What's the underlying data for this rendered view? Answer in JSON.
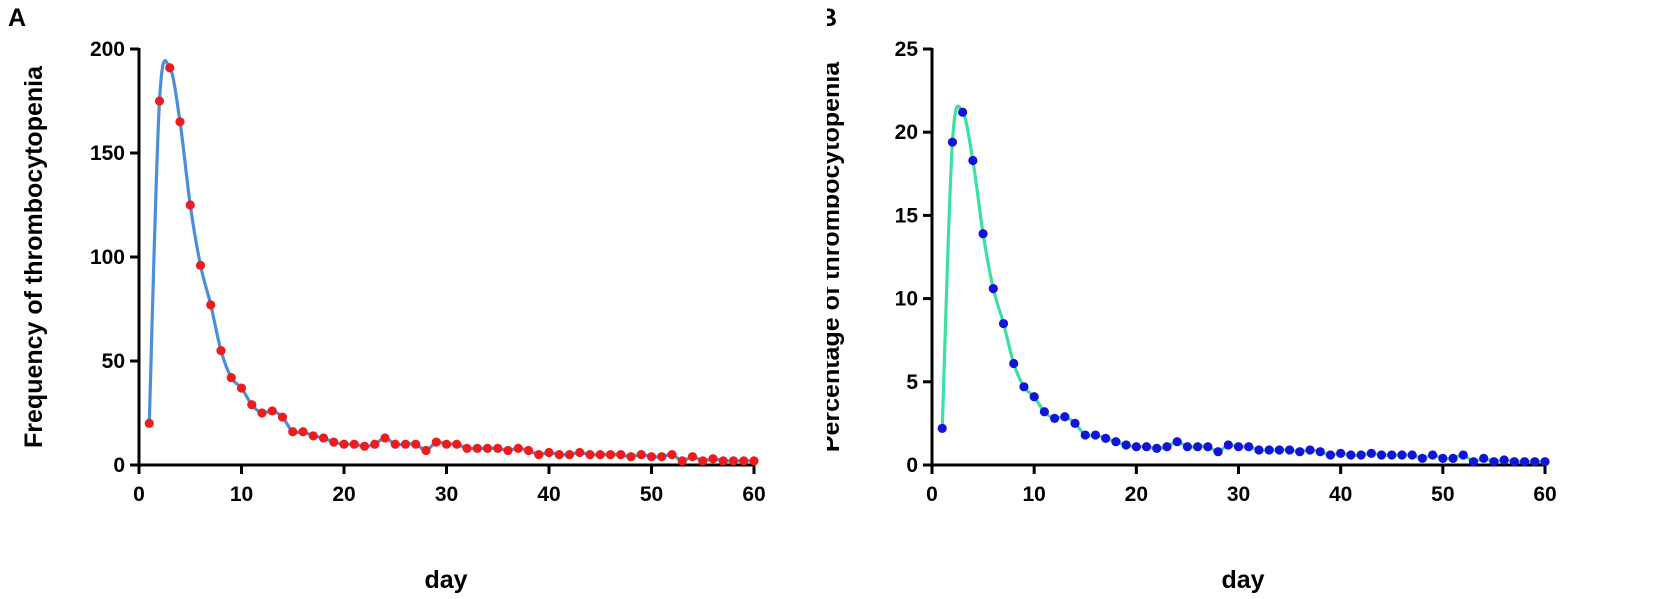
{
  "chart_data": [
    {
      "type": "line",
      "panel_label": "A",
      "xlabel": "day",
      "ylabel": "Frequency of thrombocytopenia",
      "xlim": [
        0,
        60
      ],
      "ylim": [
        0,
        200
      ],
      "xticks": [
        0,
        10,
        20,
        30,
        40,
        50,
        60
      ],
      "yticks": [
        0,
        50,
        100,
        150,
        200
      ],
      "grid": false,
      "line_color": "#4a90d9",
      "marker_color": "#ee1c1c",
      "series": [
        {
          "x": [
            1,
            2,
            3,
            4,
            5,
            6,
            7,
            8,
            9,
            10,
            11,
            12,
            13,
            14,
            15,
            16,
            17,
            18,
            19,
            20,
            21,
            22,
            23,
            24,
            25,
            26,
            27,
            28,
            29,
            30,
            31,
            32,
            33,
            34,
            35,
            36,
            37,
            38,
            39,
            40,
            41,
            42,
            43,
            44,
            45,
            46,
            47,
            48,
            49,
            50,
            51,
            52,
            53,
            54,
            55,
            56,
            57,
            58,
            59,
            60
          ],
          "values": [
            20,
            175,
            191,
            165,
            125,
            96,
            77,
            55,
            42,
            37,
            29,
            25,
            26,
            23,
            16,
            16,
            14,
            13,
            11,
            10,
            10,
            9,
            10,
            13,
            10,
            10,
            10,
            7,
            11,
            10,
            10,
            8,
            8,
            8,
            8,
            7,
            8,
            7,
            5,
            6,
            5,
            5,
            6,
            5,
            5,
            5,
            5,
            4,
            5,
            4,
            4,
            5,
            2,
            4,
            2,
            3,
            2,
            2,
            2,
            2
          ]
        }
      ]
    },
    {
      "type": "line",
      "panel_label": "B",
      "xlabel": "day",
      "ylabel": "Percentage of thrombocytopenia",
      "xlim": [
        0,
        60
      ],
      "ylim": [
        0,
        25
      ],
      "xticks": [
        0,
        10,
        20,
        30,
        40,
        50,
        60
      ],
      "yticks": [
        0,
        5,
        10,
        15,
        20,
        25
      ],
      "grid": false,
      "line_color": "#3ee0a0",
      "marker_color": "#1414d8",
      "series": [
        {
          "x": [
            1,
            2,
            3,
            4,
            5,
            6,
            7,
            8,
            9,
            10,
            11,
            12,
            13,
            14,
            15,
            16,
            17,
            18,
            19,
            20,
            21,
            22,
            23,
            24,
            25,
            26,
            27,
            28,
            29,
            30,
            31,
            32,
            33,
            34,
            35,
            36,
            37,
            38,
            39,
            40,
            41,
            42,
            43,
            44,
            45,
            46,
            47,
            48,
            49,
            50,
            51,
            52,
            53,
            54,
            55,
            56,
            57,
            58,
            59,
            60
          ],
          "values": [
            2.2,
            19.4,
            21.2,
            18.3,
            13.9,
            10.6,
            8.5,
            6.1,
            4.7,
            4.1,
            3.2,
            2.8,
            2.9,
            2.5,
            1.8,
            1.8,
            1.6,
            1.4,
            1.2,
            1.1,
            1.1,
            1.0,
            1.1,
            1.4,
            1.1,
            1.1,
            1.1,
            0.8,
            1.2,
            1.1,
            1.1,
            0.9,
            0.9,
            0.9,
            0.9,
            0.8,
            0.9,
            0.8,
            0.6,
            0.7,
            0.6,
            0.6,
            0.7,
            0.6,
            0.6,
            0.6,
            0.6,
            0.4,
            0.6,
            0.4,
            0.4,
            0.6,
            0.2,
            0.4,
            0.2,
            0.3,
            0.2,
            0.2,
            0.2,
            0.2
          ]
        }
      ]
    }
  ]
}
